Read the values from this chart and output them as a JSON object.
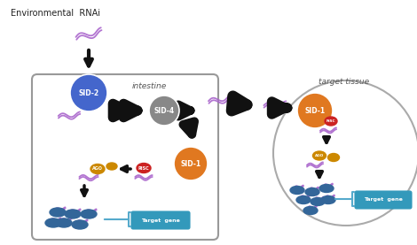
{
  "title_env": "Environmental  RNAi",
  "title_target": "target tissue",
  "label_intestine": "intestine",
  "label_sid2": "SID-2",
  "label_sid4": "SID-4",
  "label_sid1_int": "SID-1",
  "label_sid1_tgt": "SID-1",
  "label_target_gene1": "Target  gene",
  "label_target_gene2": "Target  gene",
  "color_sid2": "#4466cc",
  "color_sid4": "#888888",
  "color_sid1": "#e07820",
  "color_rna_purple": "#aa66cc",
  "color_risc_red": "#cc2222",
  "color_risc_gold": "#cc8800",
  "color_risc_blue": "#336699",
  "color_target_gene_box": "#3399bb",
  "color_black": "#111111",
  "color_arrow_blue": "#55aacc",
  "color_box_edge": "#999999"
}
